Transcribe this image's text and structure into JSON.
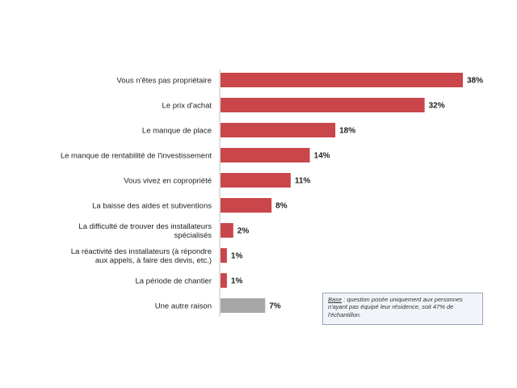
{
  "chart_data": {
    "type": "bar",
    "orientation": "horizontal",
    "categories": [
      "Vous n'êtes pas propriétaire",
      "Le prix d'achat",
      "Le manque de place",
      "Le manque de rentabilité de l'investissement",
      "Vous vivez en copropriété",
      "La baisse des aides et subventions",
      "La difficulté de trouver des installateurs spécialisés",
      "La réactivité des installateurs (à répondre aux appels, à faire des devis, etc.)",
      "La période de chantier",
      "Une autre raison"
    ],
    "values": [
      38,
      32,
      18,
      14,
      11,
      8,
      2,
      1,
      1,
      7
    ],
    "value_labels": [
      "38%",
      "32%",
      "18%",
      "14%",
      "11%",
      "8%",
      "2%",
      "1%",
      "1%",
      "7%"
    ],
    "colors": [
      "#c9464a",
      "#c9464a",
      "#c9464a",
      "#c9464a",
      "#c9464a",
      "#c9464a",
      "#c9464a",
      "#c9464a",
      "#c9464a",
      "#a6a6a6"
    ],
    "xlim": [
      0,
      38
    ],
    "grid": false,
    "title": "",
    "xlabel": "",
    "ylabel": ""
  },
  "note": {
    "base_label": "Base",
    "text": " : question posée uniquement aux personnes n'ayant pas équipé leur résidence, soit 47% de l'échantillon."
  }
}
